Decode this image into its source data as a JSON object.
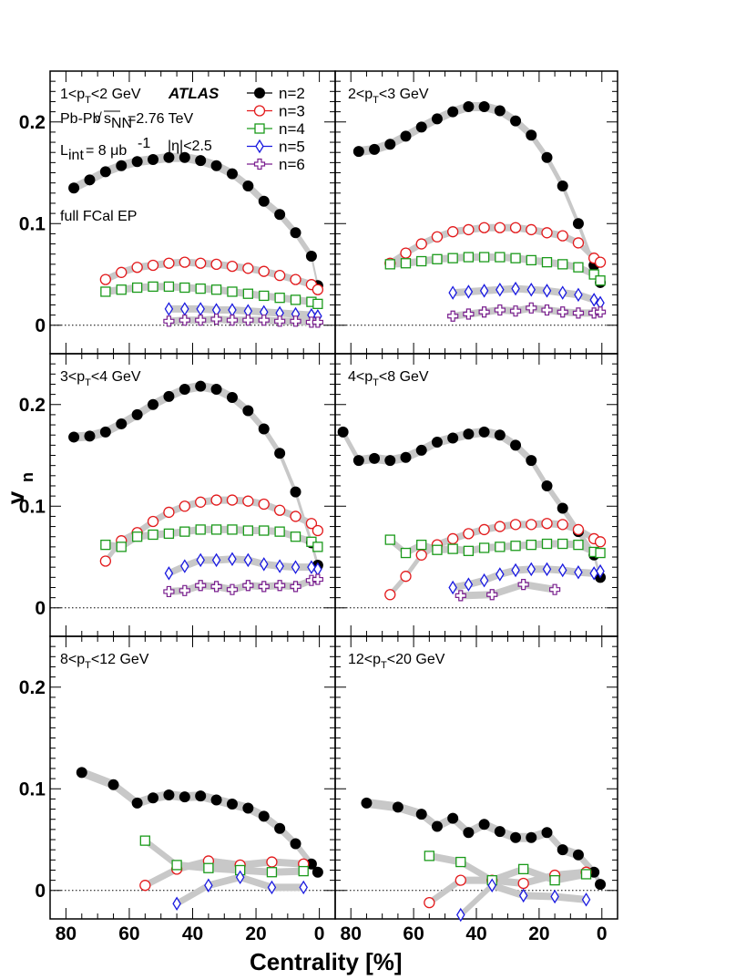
{
  "axis": {
    "xlabel": "Centrality [%]",
    "ylabel": "v",
    "ylabel_sub": "n",
    "x_ticks": [
      "80",
      "60",
      "40",
      "20",
      "0"
    ],
    "y_ticks": [
      "0",
      "0.1",
      "0.2"
    ]
  },
  "legend": {
    "entries": [
      {
        "label": "n=2",
        "series": "n2"
      },
      {
        "label": "n=3",
        "series": "n3"
      },
      {
        "label": "n=4",
        "series": "n4"
      },
      {
        "label": "n=5",
        "series": "n5"
      },
      {
        "label": "n=6",
        "series": "n6"
      }
    ]
  },
  "annotations": {
    "experiment": "ATLAS",
    "system": "Pb-Pb",
    "energy": "=2.76 TeV",
    "luminosity_value": "= 8 μb",
    "eta_cut": "|η|<2.5",
    "method": "full FCal EP"
  },
  "colors": {
    "n2": "#000000",
    "n3": "#e31a1c",
    "n4": "#1a9a1a",
    "n5": "#1a1ae0",
    "n6": "#7a1f8f",
    "band": "#c8c8c8"
  },
  "markers": {
    "n2": "filled-circle",
    "n3": "open-circle",
    "n4": "open-square",
    "n5": "open-diamond",
    "n6": "open-cross"
  },
  "chart_data": [
    {
      "type": "scatter",
      "panel_label": "1<pT<2 GeV",
      "xlim": [
        85,
        -5
      ],
      "ylim": [
        -0.028,
        0.25
      ],
      "series": [
        {
          "name": "n=2",
          "key": "n2",
          "x": [
            77.5,
            72.5,
            67.5,
            62.5,
            57.5,
            52.5,
            47.5,
            42.5,
            37.5,
            32.5,
            27.5,
            22.5,
            17.5,
            12.5,
            7.5,
            2.5,
            0.5
          ],
          "y": [
            0.135,
            0.143,
            0.151,
            0.157,
            0.161,
            0.163,
            0.165,
            0.165,
            0.162,
            0.157,
            0.149,
            0.137,
            0.122,
            0.109,
            0.091,
            0.068,
            0.039
          ]
        },
        {
          "name": "n=3",
          "key": "n3",
          "x": [
            67.5,
            62.5,
            57.5,
            52.5,
            47.5,
            42.5,
            37.5,
            32.5,
            27.5,
            22.5,
            17.5,
            12.5,
            7.5,
            2.5,
            0.5
          ],
          "y": [
            0.045,
            0.052,
            0.057,
            0.059,
            0.061,
            0.062,
            0.061,
            0.06,
            0.058,
            0.056,
            0.053,
            0.049,
            0.045,
            0.04,
            0.035
          ]
        },
        {
          "name": "n=4",
          "key": "n4",
          "x": [
            67.5,
            62.5,
            57.5,
            52.5,
            47.5,
            42.5,
            37.5,
            32.5,
            27.5,
            22.5,
            17.5,
            12.5,
            7.5,
            2.5,
            0.5
          ],
          "y": [
            0.033,
            0.035,
            0.037,
            0.038,
            0.038,
            0.037,
            0.036,
            0.035,
            0.033,
            0.031,
            0.029,
            0.027,
            0.025,
            0.023,
            0.021
          ]
        },
        {
          "name": "n=5",
          "key": "n5",
          "x": [
            47.5,
            42.5,
            37.5,
            32.5,
            27.5,
            22.5,
            17.5,
            12.5,
            7.5,
            2.5,
            0.5
          ],
          "y": [
            0.016,
            0.016,
            0.016,
            0.015,
            0.015,
            0.014,
            0.013,
            0.012,
            0.011,
            0.01,
            0.009
          ]
        },
        {
          "name": "n=6",
          "key": "n6",
          "x": [
            47.5,
            42.5,
            37.5,
            32.5,
            27.5,
            22.5,
            17.5,
            12.5,
            7.5,
            2.5,
            0.5
          ],
          "y": [
            0.004,
            0.005,
            0.005,
            0.006,
            0.005,
            0.005,
            0.005,
            0.004,
            0.004,
            0.003,
            0.003
          ]
        }
      ]
    },
    {
      "type": "scatter",
      "panel_label": "2<pT<3 GeV",
      "xlim": [
        85,
        -5
      ],
      "ylim": [
        -0.028,
        0.25
      ],
      "series": [
        {
          "name": "n=2",
          "key": "n2",
          "x": [
            77.5,
            72.5,
            67.5,
            62.5,
            57.5,
            52.5,
            47.5,
            42.5,
            37.5,
            32.5,
            27.5,
            22.5,
            17.5,
            12.5,
            7.5,
            2.5,
            0.5
          ],
          "y": [
            0.171,
            0.173,
            0.178,
            0.186,
            0.195,
            0.203,
            0.21,
            0.215,
            0.215,
            0.211,
            0.201,
            0.187,
            0.165,
            0.137,
            0.1,
            0.059,
            0.042
          ]
        },
        {
          "name": "n=3",
          "key": "n3",
          "x": [
            67.5,
            62.5,
            57.5,
            52.5,
            47.5,
            42.5,
            37.5,
            32.5,
            27.5,
            22.5,
            17.5,
            12.5,
            7.5,
            2.5,
            0.5
          ],
          "y": [
            0.061,
            0.071,
            0.08,
            0.087,
            0.092,
            0.094,
            0.096,
            0.096,
            0.096,
            0.094,
            0.091,
            0.088,
            0.081,
            0.066,
            0.062
          ]
        },
        {
          "name": "n=4",
          "key": "n4",
          "x": [
            67.5,
            62.5,
            57.5,
            52.5,
            47.5,
            42.5,
            37.5,
            32.5,
            27.5,
            22.5,
            17.5,
            12.5,
            7.5,
            2.5,
            0.5
          ],
          "y": [
            0.06,
            0.061,
            0.063,
            0.065,
            0.066,
            0.067,
            0.067,
            0.067,
            0.066,
            0.064,
            0.062,
            0.06,
            0.057,
            0.05,
            0.044
          ]
        },
        {
          "name": "n=5",
          "key": "n5",
          "x": [
            47.5,
            42.5,
            37.5,
            32.5,
            27.5,
            22.5,
            17.5,
            12.5,
            7.5,
            2.5,
            0.5
          ],
          "y": [
            0.032,
            0.033,
            0.034,
            0.035,
            0.036,
            0.035,
            0.034,
            0.032,
            0.03,
            0.025,
            0.022
          ]
        },
        {
          "name": "n=6",
          "key": "n6",
          "x": [
            47.5,
            42.5,
            37.5,
            32.5,
            27.5,
            22.5,
            17.5,
            12.5,
            7.5,
            2.5,
            0.5
          ],
          "y": [
            0.009,
            0.011,
            0.013,
            0.015,
            0.014,
            0.017,
            0.015,
            0.013,
            0.012,
            0.012,
            0.013
          ]
        }
      ]
    },
    {
      "type": "scatter",
      "panel_label": "3<pT<4 GeV",
      "xlim": [
        85,
        -5
      ],
      "ylim": [
        -0.028,
        0.25
      ],
      "series": [
        {
          "name": "n=2",
          "key": "n2",
          "x": [
            77.5,
            72.5,
            67.5,
            62.5,
            57.5,
            52.5,
            47.5,
            42.5,
            37.5,
            32.5,
            27.5,
            22.5,
            17.5,
            12.5,
            7.5,
            2.5,
            0.5
          ],
          "y": [
            0.168,
            0.169,
            0.173,
            0.181,
            0.19,
            0.2,
            0.208,
            0.215,
            0.218,
            0.215,
            0.207,
            0.194,
            0.176,
            0.152,
            0.114,
            0.064,
            0.042
          ]
        },
        {
          "name": "n=3",
          "key": "n3",
          "x": [
            67.5,
            62.5,
            57.5,
            52.5,
            47.5,
            42.5,
            37.5,
            32.5,
            27.5,
            22.5,
            17.5,
            12.5,
            7.5,
            2.5,
            0.5
          ],
          "y": [
            0.046,
            0.066,
            0.074,
            0.085,
            0.094,
            0.1,
            0.104,
            0.106,
            0.106,
            0.105,
            0.102,
            0.096,
            0.09,
            0.083,
            0.076
          ]
        },
        {
          "name": "n=4",
          "key": "n4",
          "x": [
            67.5,
            62.5,
            57.5,
            52.5,
            47.5,
            42.5,
            37.5,
            32.5,
            27.5,
            22.5,
            17.5,
            12.5,
            7.5,
            2.5,
            0.5
          ],
          "y": [
            0.062,
            0.06,
            0.07,
            0.072,
            0.073,
            0.075,
            0.077,
            0.077,
            0.077,
            0.076,
            0.076,
            0.075,
            0.07,
            0.065,
            0.06
          ]
        },
        {
          "name": "n=5",
          "key": "n5",
          "x": [
            47.5,
            42.5,
            37.5,
            32.5,
            27.5,
            22.5,
            17.5,
            12.5,
            7.5,
            2.5,
            0.5
          ],
          "y": [
            0.034,
            0.041,
            0.047,
            0.047,
            0.048,
            0.047,
            0.043,
            0.041,
            0.04,
            0.04,
            0.038
          ]
        },
        {
          "name": "n=6",
          "key": "n6",
          "x": [
            47.5,
            42.5,
            37.5,
            32.5,
            27.5,
            22.5,
            17.5,
            12.5,
            7.5,
            2.5,
            0.5
          ],
          "y": [
            0.016,
            0.017,
            0.022,
            0.021,
            0.018,
            0.022,
            0.021,
            0.022,
            0.021,
            0.027,
            0.028
          ]
        }
      ]
    },
    {
      "type": "scatter",
      "panel_label": "4<pT<8 GeV",
      "xlim": [
        85,
        -5
      ],
      "ylim": [
        -0.028,
        0.25
      ],
      "series": [
        {
          "name": "n=2",
          "key": "n2",
          "x": [
            82.5,
            77.5,
            72.5,
            67.5,
            62.5,
            57.5,
            52.5,
            47.5,
            42.5,
            37.5,
            32.5,
            27.5,
            22.5,
            17.5,
            12.5,
            7.5,
            2.5,
            0.5
          ],
          "y": [
            0.173,
            0.145,
            0.147,
            0.145,
            0.148,
            0.155,
            0.163,
            0.167,
            0.171,
            0.173,
            0.17,
            0.16,
            0.145,
            0.12,
            0.098,
            0.075,
            0.052,
            0.03
          ]
        },
        {
          "name": "n=3",
          "key": "n3",
          "x": [
            67.5,
            62.5,
            57.5,
            52.5,
            47.5,
            42.5,
            37.5,
            32.5,
            27.5,
            22.5,
            17.5,
            12.5,
            7.5,
            2.5,
            0.5
          ],
          "y": [
            0.013,
            0.031,
            0.052,
            0.062,
            0.068,
            0.073,
            0.077,
            0.08,
            0.082,
            0.082,
            0.083,
            0.082,
            0.077,
            0.068,
            0.065
          ]
        },
        {
          "name": "n=4",
          "key": "n4",
          "x": [
            67.5,
            62.5,
            57.5,
            52.5,
            47.5,
            42.5,
            37.5,
            32.5,
            27.5,
            22.5,
            17.5,
            12.5,
            7.5,
            2.5,
            0.5
          ],
          "y": [
            0.067,
            0.054,
            0.062,
            0.057,
            0.058,
            0.056,
            0.059,
            0.06,
            0.061,
            0.062,
            0.063,
            0.063,
            0.062,
            0.055,
            0.054
          ]
        },
        {
          "name": "n=5",
          "key": "n5",
          "x": [
            47.5,
            42.5,
            37.5,
            32.5,
            27.5,
            22.5,
            17.5,
            12.5,
            7.5,
            2.5,
            0.5
          ],
          "y": [
            0.02,
            0.023,
            0.027,
            0.033,
            0.037,
            0.038,
            0.038,
            0.037,
            0.035,
            0.034,
            0.036
          ]
        },
        {
          "name": "n=6",
          "key": "n6",
          "x": [
            45,
            35,
            25,
            15
          ],
          "y": [
            0.012,
            0.013,
            0.023,
            0.018
          ]
        }
      ]
    },
    {
      "type": "scatter",
      "panel_label": "8<pT<12 GeV",
      "xlim": [
        85,
        -5
      ],
      "ylim": [
        -0.028,
        0.25
      ],
      "series": [
        {
          "name": "n=2",
          "key": "n2",
          "x": [
            75,
            65,
            57.5,
            52.5,
            47.5,
            42.5,
            37.5,
            32.5,
            27.5,
            22.5,
            17.5,
            12.5,
            7.5,
            2.5,
            0.5
          ],
          "y": [
            0.116,
            0.104,
            0.086,
            0.091,
            0.094,
            0.092,
            0.093,
            0.089,
            0.085,
            0.081,
            0.073,
            0.061,
            0.046,
            0.026,
            0.018
          ]
        },
        {
          "name": "n=3",
          "key": "n3",
          "x": [
            55,
            45,
            35,
            25,
            15,
            5
          ],
          "y": [
            0.005,
            0.021,
            0.029,
            0.025,
            0.028,
            0.026
          ]
        },
        {
          "name": "n=4",
          "key": "n4",
          "x": [
            55,
            45,
            35,
            25,
            15,
            5
          ],
          "y": [
            0.049,
            0.025,
            0.022,
            0.02,
            0.018,
            0.019
          ]
        },
        {
          "name": "n=5",
          "key": "n5",
          "x": [
            45,
            35,
            25,
            15,
            5
          ],
          "y": [
            -0.013,
            0.005,
            0.013,
            0.003,
            0.003
          ]
        }
      ]
    },
    {
      "type": "scatter",
      "panel_label": "12<pT<20 GeV",
      "xlim": [
        85,
        -5
      ],
      "ylim": [
        -0.028,
        0.25
      ],
      "series": [
        {
          "name": "n=2",
          "key": "n2",
          "x": [
            75,
            65,
            57.5,
            52.5,
            47.5,
            42.5,
            37.5,
            32.5,
            27.5,
            22.5,
            17.5,
            12.5,
            7.5,
            2.5,
            0.5
          ],
          "y": [
            0.086,
            0.082,
            0.075,
            0.063,
            0.071,
            0.057,
            0.065,
            0.058,
            0.052,
            0.052,
            0.057,
            0.04,
            0.035,
            0.018,
            0.006
          ]
        },
        {
          "name": "n=3",
          "key": "n3",
          "x": [
            55,
            45,
            35,
            25,
            15,
            5
          ],
          "y": [
            -0.012,
            0.01,
            0.01,
            0.007,
            0.015,
            0.018
          ]
        },
        {
          "name": "n=4",
          "key": "n4",
          "x": [
            55,
            45,
            35,
            25,
            15,
            5
          ],
          "y": [
            0.034,
            0.028,
            0.01,
            0.021,
            0.01,
            0.016
          ]
        },
        {
          "name": "n=5",
          "key": "n5",
          "x": [
            45,
            35,
            25,
            15,
            5
          ],
          "y": [
            -0.024,
            0.005,
            -0.005,
            -0.006,
            -0.009
          ]
        }
      ]
    }
  ]
}
